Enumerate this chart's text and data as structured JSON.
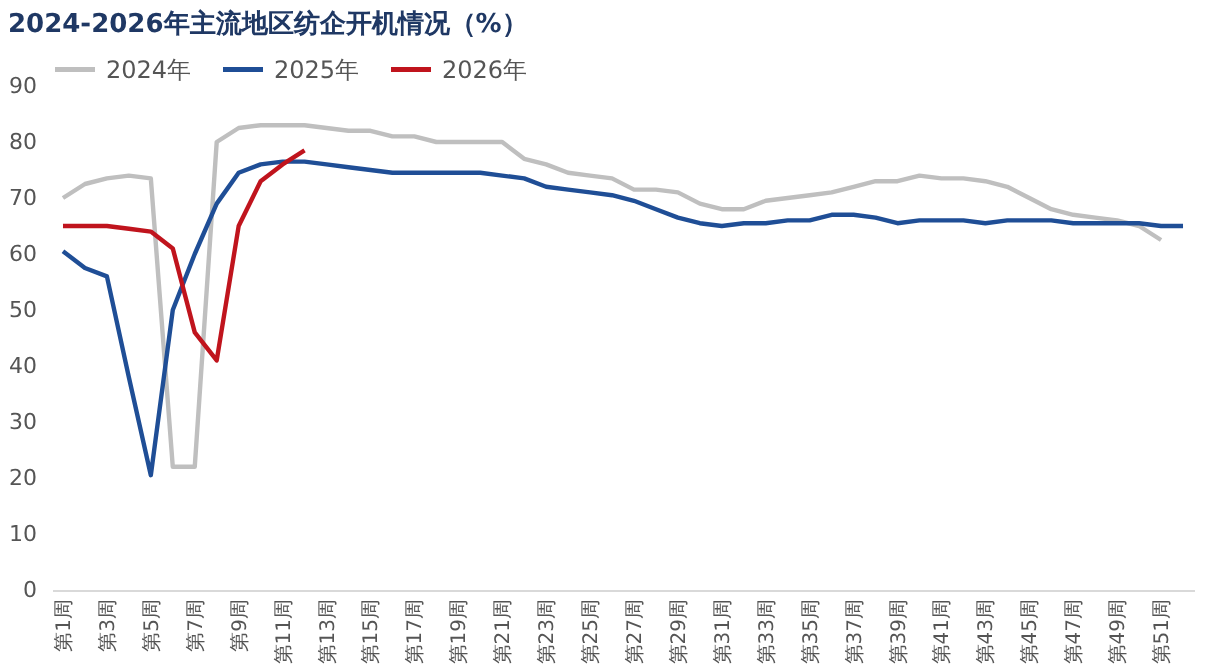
{
  "chart_data": {
    "type": "line",
    "title": "2024-2026年主流地区纺企开机情况（%）",
    "categories": [
      "第1周",
      null,
      "第3周",
      null,
      "第5周",
      null,
      "第7周",
      null,
      "第9周",
      null,
      "第11周",
      null,
      "第13周",
      null,
      "第15周",
      null,
      "第17周",
      null,
      "第19周",
      null,
      "第21周",
      null,
      "第23周",
      null,
      "第25周",
      null,
      "第27周",
      null,
      "第29周",
      null,
      "第31周",
      null,
      "第33周",
      null,
      "第35周",
      null,
      "第37周",
      null,
      "第39周",
      null,
      "第41周",
      null,
      "第43周",
      null,
      "第45周",
      null,
      "第47周",
      null,
      "第49周",
      null,
      "第51周",
      null
    ],
    "series": [
      {
        "name": "2024年",
        "color": "#bfbfbf",
        "values": [
          70,
          72.5,
          73.5,
          74,
          73.5,
          22,
          22,
          80,
          82.5,
          83,
          83,
          83,
          82.5,
          82,
          82,
          81,
          81,
          80,
          80,
          80,
          80,
          77,
          76,
          74.5,
          74,
          73.5,
          71.5,
          71.5,
          71,
          69,
          68,
          68,
          69.5,
          70,
          70.5,
          71,
          72,
          73,
          73,
          74,
          73.5,
          73.5,
          73,
          72,
          70,
          68,
          67,
          66.5,
          66,
          65,
          62.5,
          null
        ]
      },
      {
        "name": "2025年",
        "color": "#1f4e96",
        "values": [
          60.5,
          57.5,
          56,
          38,
          20.5,
          50,
          60,
          69,
          74.5,
          76,
          76.5,
          76.5,
          76,
          75.5,
          75,
          74.5,
          74.5,
          74.5,
          74.5,
          74.5,
          74,
          73.5,
          72,
          71.5,
          71,
          70.5,
          69.5,
          68,
          66.5,
          65.5,
          65,
          65.5,
          65.5,
          66,
          66,
          67,
          67,
          66.5,
          65.5,
          66,
          66,
          66,
          65.5,
          66,
          66,
          66,
          65.5,
          65.5,
          65.5,
          65.5,
          65,
          65
        ]
      },
      {
        "name": "2026年",
        "color": "#c0141d",
        "values": [
          65,
          65,
          65,
          64.5,
          64,
          61,
          46,
          41,
          65,
          73,
          76,
          78.5,
          null,
          null,
          null,
          null,
          null,
          null,
          null,
          null,
          null,
          null,
          null,
          null,
          null,
          null,
          null,
          null,
          null,
          null,
          null,
          null,
          null,
          null,
          null,
          null,
          null,
          null,
          null,
          null,
          null,
          null,
          null,
          null,
          null,
          null,
          null,
          null,
          null,
          null,
          null,
          null
        ]
      }
    ],
    "ylim": [
      0,
      90
    ],
    "yticks": [
      0,
      10,
      20,
      30,
      40,
      50,
      60,
      70,
      80,
      90
    ],
    "grid": false,
    "legend": "top",
    "marker": "none",
    "line_style": "solid"
  }
}
